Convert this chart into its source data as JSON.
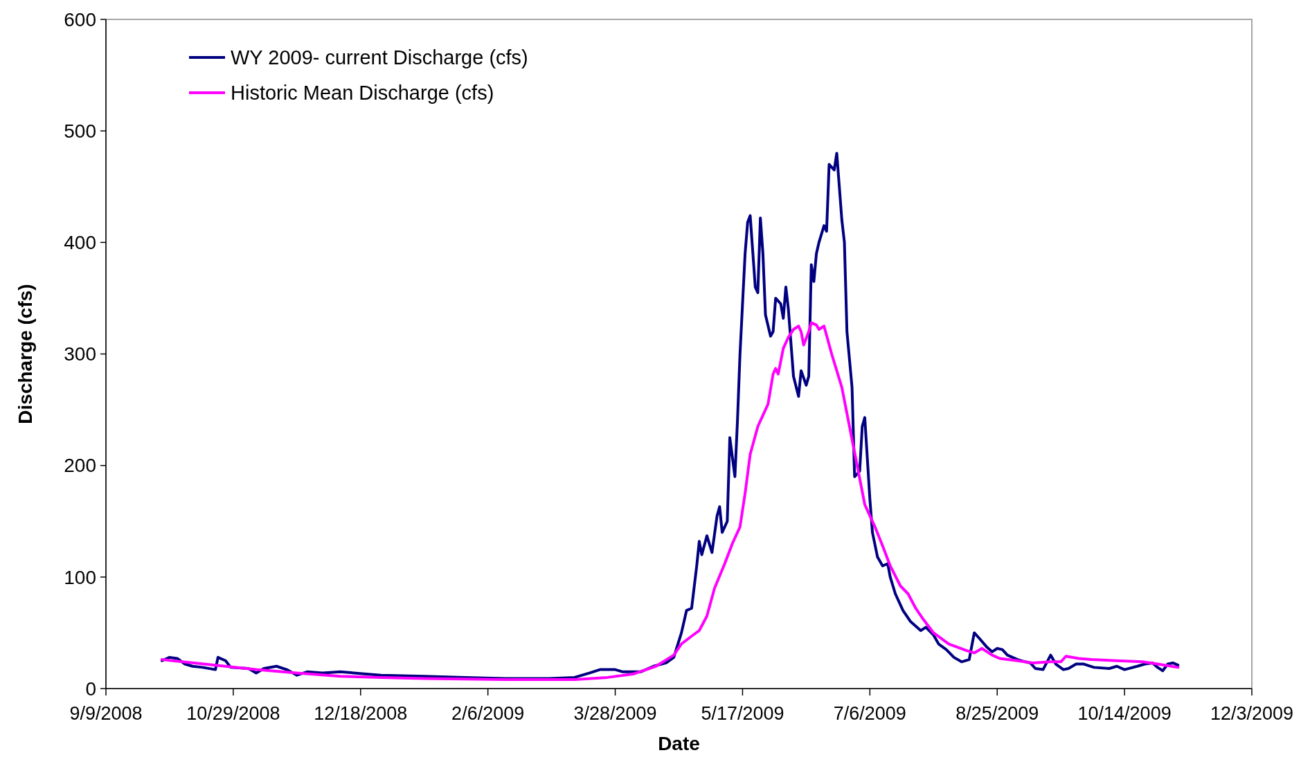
{
  "chart_data": {
    "type": "line",
    "xlabel": "Date",
    "ylabel": "Discharge (cfs)",
    "xlim": [
      "2008-09-09",
      "2009-12-03"
    ],
    "xticks": [
      {
        "value": "2008-09-09",
        "label": "9/9/2008"
      },
      {
        "value": "2008-10-29",
        "label": "10/29/2008"
      },
      {
        "value": "2008-12-18",
        "label": "12/18/2008"
      },
      {
        "value": "2009-02-06",
        "label": "2/6/2009"
      },
      {
        "value": "2009-03-28",
        "label": "3/28/2009"
      },
      {
        "value": "2009-05-17",
        "label": "5/17/2009"
      },
      {
        "value": "2009-07-06",
        "label": "7/6/2009"
      },
      {
        "value": "2009-08-25",
        "label": "8/25/2009"
      },
      {
        "value": "2009-10-14",
        "label": "10/14/2009"
      },
      {
        "value": "2009-12-03",
        "label": "12/3/2009"
      }
    ],
    "ylim": [
      0,
      600
    ],
    "yticks": [
      0,
      100,
      200,
      300,
      400,
      500,
      600
    ],
    "grid": false,
    "legend": "top left",
    "marker": "none",
    "line_style": "solid",
    "series": [
      {
        "name": "WY 2009- current Discharge (cfs)",
        "color": "#000080",
        "x": [
          "2008-10-01",
          "2008-10-04",
          "2008-10-07",
          "2008-10-10",
          "2008-10-13",
          "2008-10-17",
          "2008-10-22",
          "2008-10-23",
          "2008-10-26",
          "2008-10-28",
          "2008-11-04",
          "2008-11-07",
          "2008-11-10",
          "2008-11-15",
          "2008-11-19",
          "2008-11-23",
          "2008-11-27",
          "2008-12-03",
          "2008-12-10",
          "2008-12-26",
          "2009-01-12",
          "2009-01-28",
          "2009-02-13",
          "2009-03-02",
          "2009-03-12",
          "2009-03-18",
          "2009-03-22",
          "2009-03-28",
          "2009-03-31",
          "2009-04-07",
          "2009-04-12",
          "2009-04-17",
          "2009-04-20",
          "2009-04-23",
          "2009-04-25",
          "2009-04-27",
          "2009-04-29",
          "2009-04-30",
          "2009-05-01",
          "2009-05-03",
          "2009-05-05",
          "2009-05-07",
          "2009-05-08",
          "2009-05-09",
          "2009-05-11",
          "2009-05-12",
          "2009-05-14",
          "2009-05-15",
          "2009-05-16",
          "2009-05-18",
          "2009-05-19",
          "2009-05-20",
          "2009-05-22",
          "2009-05-23",
          "2009-05-24",
          "2009-05-25",
          "2009-05-26",
          "2009-05-28",
          "2009-05-29",
          "2009-05-30",
          "2009-06-01",
          "2009-06-02",
          "2009-06-03",
          "2009-06-04",
          "2009-06-06",
          "2009-06-08",
          "2009-06-09",
          "2009-06-11",
          "2009-06-12",
          "2009-06-13",
          "2009-06-14",
          "2009-06-15",
          "2009-06-16",
          "2009-06-18",
          "2009-06-19",
          "2009-06-20",
          "2009-06-22",
          "2009-06-23",
          "2009-06-25",
          "2009-06-26",
          "2009-06-27",
          "2009-06-29",
          "2009-06-30",
          "2009-07-02",
          "2009-07-03",
          "2009-07-04",
          "2009-07-06",
          "2009-07-07",
          "2009-07-09",
          "2009-07-11",
          "2009-07-13",
          "2009-07-14",
          "2009-07-16",
          "2009-07-19",
          "2009-07-22",
          "2009-07-26",
          "2009-07-28",
          "2009-07-31",
          "2009-08-02",
          "2009-08-05",
          "2009-08-08",
          "2009-08-11",
          "2009-08-14",
          "2009-08-16",
          "2009-08-18",
          "2009-08-21",
          "2009-08-23",
          "2009-08-25",
          "2009-08-27",
          "2009-08-29",
          "2009-09-02",
          "2009-09-05",
          "2009-09-07",
          "2009-09-09",
          "2009-09-12",
          "2009-09-15",
          "2009-09-17",
          "2009-09-20",
          "2009-09-22",
          "2009-09-25",
          "2009-09-28",
          "2009-10-02",
          "2009-10-08",
          "2009-10-11",
          "2009-10-14",
          "2009-10-19",
          "2009-10-22",
          "2009-10-25",
          "2009-10-27",
          "2009-10-29",
          "2009-10-31",
          "2009-11-02",
          "2009-11-04"
        ],
        "values": [
          25,
          28,
          27,
          22,
          20,
          19,
          17,
          28,
          25,
          19,
          18,
          14,
          18,
          20,
          17,
          12,
          15,
          14,
          15,
          12,
          11,
          10,
          9,
          9,
          10,
          14,
          17,
          17,
          15,
          15,
          20,
          23,
          28,
          50,
          70,
          72,
          110,
          132,
          120,
          137,
          122,
          155,
          163,
          140,
          150,
          225,
          190,
          240,
          300,
          390,
          418,
          424,
          360,
          355,
          422,
          390,
          335,
          316,
          320,
          350,
          345,
          332,
          360,
          340,
          280,
          262,
          285,
          272,
          280,
          380,
          365,
          390,
          400,
          415,
          410,
          470,
          465,
          480,
          420,
          400,
          320,
          270,
          190,
          195,
          235,
          243,
          170,
          140,
          118,
          110,
          112,
          100,
          85,
          70,
          60,
          52,
          55,
          48,
          40,
          35,
          28,
          24,
          26,
          50,
          45,
          37,
          33,
          36,
          35,
          30,
          26,
          24,
          23,
          18,
          17,
          30,
          22,
          17,
          18,
          22,
          22,
          19,
          18,
          20,
          17,
          20,
          22,
          23,
          19,
          16,
          22,
          23,
          21
        ]
      },
      {
        "name": "Historic Mean Discharge (cfs)",
        "color": "#ff00ff",
        "x": [
          "2008-10-01",
          "2008-10-22",
          "2008-11-07",
          "2008-11-23",
          "2008-12-10",
          "2008-12-26",
          "2009-01-12",
          "2009-02-13",
          "2009-03-12",
          "2009-03-25",
          "2009-04-04",
          "2009-04-13",
          "2009-04-20",
          "2009-04-23",
          "2009-04-27",
          "2009-04-30",
          "2009-05-03",
          "2009-05-06",
          "2009-05-10",
          "2009-05-13",
          "2009-05-16",
          "2009-05-18",
          "2009-05-20",
          "2009-05-23",
          "2009-05-25",
          "2009-05-27",
          "2009-05-29",
          "2009-05-30",
          "2009-05-31",
          "2009-06-02",
          "2009-06-04",
          "2009-06-06",
          "2009-06-08",
          "2009-06-09",
          "2009-06-10",
          "2009-06-12",
          "2009-06-13",
          "2009-06-15",
          "2009-06-16",
          "2009-06-18",
          "2009-06-21",
          "2009-06-25",
          "2009-06-28",
          "2009-07-01",
          "2009-07-04",
          "2009-07-08",
          "2009-07-11",
          "2009-07-14",
          "2009-07-18",
          "2009-07-21",
          "2009-07-24",
          "2009-07-27",
          "2009-07-31",
          "2009-08-06",
          "2009-08-13",
          "2009-08-16",
          "2009-08-19",
          "2009-08-23",
          "2009-08-26",
          "2009-09-02",
          "2009-09-08",
          "2009-09-15",
          "2009-09-19",
          "2009-09-21",
          "2009-09-26",
          "2009-10-01",
          "2009-10-11",
          "2009-10-21",
          "2009-10-27",
          "2009-11-04"
        ],
        "values": [
          26,
          21,
          17,
          14,
          11,
          10,
          9,
          8,
          8,
          10,
          13,
          20,
          30,
          40,
          47,
          52,
          65,
          90,
          112,
          130,
          145,
          175,
          210,
          235,
          245,
          255,
          282,
          287,
          282,
          305,
          315,
          322,
          325,
          320,
          308,
          320,
          328,
          326,
          322,
          325,
          300,
          270,
          235,
          200,
          165,
          145,
          128,
          110,
          92,
          85,
          72,
          62,
          50,
          40,
          34,
          32,
          36,
          30,
          27,
          25,
          23,
          24,
          24,
          29,
          27,
          26,
          25,
          24,
          22,
          19
        ]
      }
    ]
  }
}
